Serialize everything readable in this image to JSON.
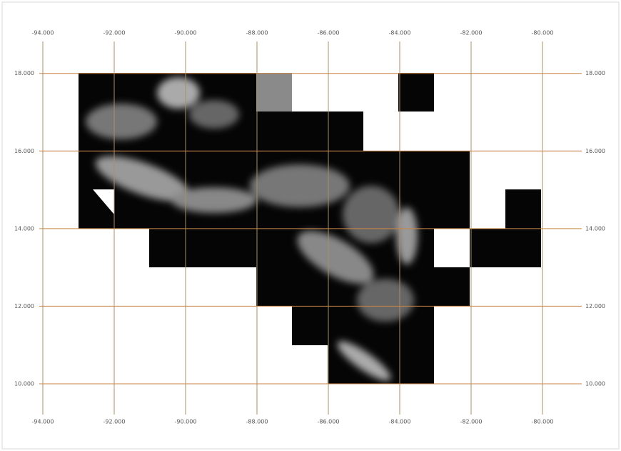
{
  "chart_data": {
    "type": "map",
    "xlim": [
      -95.1,
      -77.9
    ],
    "ylim": [
      8.36,
      19.8
    ],
    "xticks": [
      {
        "value": -94,
        "label": "-94.000"
      },
      {
        "value": -92,
        "label": "-92.000"
      },
      {
        "value": -90,
        "label": "-90.000"
      },
      {
        "value": -88,
        "label": "-88.000"
      },
      {
        "value": -86,
        "label": "-86.000"
      },
      {
        "value": -84,
        "label": "-84.000"
      },
      {
        "value": -82,
        "label": "-82.000"
      },
      {
        "value": -80,
        "label": "-80.000"
      }
    ],
    "yticks": [
      {
        "value": 18,
        "label": "18.000"
      },
      {
        "value": 16,
        "label": "16.000"
      },
      {
        "value": 14,
        "label": "14.000"
      },
      {
        "value": 12,
        "label": "12.000"
      },
      {
        "value": 10,
        "label": "10.000"
      }
    ],
    "grid": true
  }
}
